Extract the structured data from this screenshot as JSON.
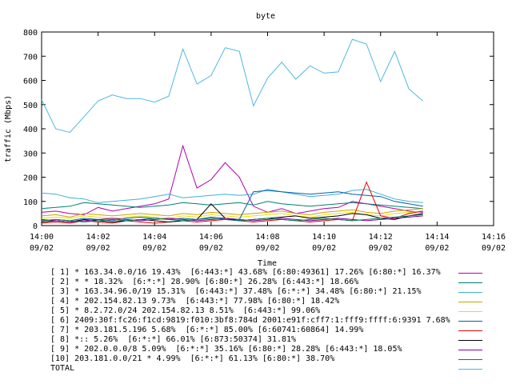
{
  "chart_data": {
    "type": "line",
    "title": "byte",
    "xlabel": "Time",
    "ylabel": "traffic (Mbps)",
    "ylim": [
      0,
      800
    ],
    "yticks": [
      "0",
      "100",
      "200",
      "300",
      "400",
      "500",
      "600",
      "700",
      "800"
    ],
    "xlim": [
      0,
      135
    ],
    "xticks": [
      {
        "t": 0,
        "time": "14:00",
        "date": "09/02"
      },
      {
        "t": 20,
        "time": "14:02",
        "date": "09/02"
      },
      {
        "t": 40,
        "time": "14:04",
        "date": "09/02"
      },
      {
        "t": 60,
        "time": "14:06",
        "date": "09/02"
      },
      {
        "t": 80,
        "time": "14:08",
        "date": "09/02"
      },
      {
        "t": 100,
        "time": "14:10",
        "date": "09/02"
      },
      {
        "t": 120,
        "time": "14:12",
        "date": "09/02"
      },
      {
        "t": 140,
        "time": "14:14",
        "date": "09/02"
      },
      {
        "t": 160,
        "time": "14:16",
        "date": "09/02"
      }
    ],
    "x": [
      0,
      5,
      10,
      15,
      20,
      25,
      30,
      35,
      40,
      45,
      50,
      55,
      60,
      65,
      70,
      75,
      80,
      85,
      90,
      95,
      100,
      105,
      110,
      115,
      120,
      125,
      130,
      135
    ],
    "series": [
      {
        "name": "[ 1] * 163.34.0.0/16 19.43%  [6:443:*] 43.68% [6:80:49361] 17.26% [6:80:*] 16.37%",
        "color": "#b000b0",
        "values": [
          55,
          60,
          50,
          45,
          75,
          60,
          70,
          80,
          90,
          110,
          330,
          155,
          190,
          260,
          200,
          80,
          55,
          70,
          50,
          60,
          70,
          75,
          100,
          90,
          80,
          70,
          60,
          55
        ]
      },
      {
        "name": "[ 2] * * 18.32%  [6:*:*] 28.90% [6:80:*] 26.28% [6:443:*] 18.66%",
        "color": "#008070",
        "values": [
          70,
          75,
          80,
          95,
          90,
          85,
          80,
          75,
          80,
          85,
          95,
          90,
          85,
          90,
          95,
          85,
          100,
          90,
          85,
          80,
          85,
          90,
          95,
          90,
          85,
          80,
          75,
          70
        ]
      },
      {
        "name": "[ 3] * 163.34.96.0/19 15.31%  [6:443:*] 37.48% [6:*:*] 34.48% [6:80:*] 21.15%",
        "color": "#40b0d0",
        "values": [
          135,
          130,
          115,
          110,
          95,
          100,
          105,
          110,
          120,
          130,
          115,
          120,
          125,
          130,
          125,
          130,
          150,
          140,
          130,
          120,
          125,
          130,
          145,
          150,
          130,
          110,
          100,
          95
        ]
      },
      {
        "name": "[ 4] * 202.154.82.13 9.73%  [6:443:*] 77.98% [6:80:*] 18.42%",
        "color": "#d0a000",
        "values": [
          40,
          45,
          35,
          50,
          45,
          40,
          45,
          50,
          45,
          40,
          50,
          45,
          55,
          50,
          45,
          50,
          55,
          60,
          50,
          45,
          55,
          60,
          65,
          55,
          50,
          60,
          65,
          70
        ]
      },
      {
        "name": "[ 5] * 8.2.72.0/24 202.154.82.13 8.51%  [6:443:*] 99.06%",
        "color": "#e8e000",
        "values": [
          30,
          35,
          30,
          40,
          35,
          30,
          35,
          40,
          35,
          30,
          40,
          35,
          45,
          40,
          35,
          40,
          45,
          50,
          40,
          35,
          45,
          50,
          55,
          45,
          40,
          50,
          55,
          60
        ]
      },
      {
        "name": "[ 6] 2409:30f:fc26:f1cd:9819:f010:3bf8:784d 2001:e91f:cff7:1:fff9:ffff:6:9391 7.68%",
        "color": "#0060b0",
        "values": [
          20,
          25,
          20,
          30,
          25,
          20,
          30,
          35,
          30,
          25,
          30,
          25,
          35,
          30,
          25,
          140,
          145,
          140,
          135,
          130,
          135,
          140,
          130,
          125,
          120,
          100,
          90,
          80
        ]
      },
      {
        "name": "[ 7] * 203.181.5.196 5.68%  [6:*:*] 85.00% [6:60741:60864] 14.99%",
        "color": "#e00000",
        "values": [
          10,
          15,
          10,
          20,
          15,
          10,
          20,
          15,
          10,
          15,
          20,
          15,
          20,
          25,
          20,
          15,
          20,
          25,
          20,
          15,
          20,
          25,
          20,
          180,
          40,
          30,
          50,
          60
        ]
      },
      {
        "name": "[ 8] *:: 5.26%  [6:*:*] 66.01% [6:873:50374] 31.81%",
        "color": "#000000",
        "values": [
          15,
          20,
          15,
          25,
          20,
          15,
          20,
          25,
          20,
          15,
          20,
          25,
          90,
          30,
          20,
          25,
          30,
          35,
          40,
          30,
          35,
          40,
          50,
          45,
          30,
          25,
          40,
          50
        ]
      },
      {
        "name": "[ 9] * 202.0.0.0/8 5.09%  [6:*:*] 35.16% [6:80:*] 28.28% [6:443:*] 18.05%",
        "color": "#8000a0",
        "values": [
          25,
          20,
          15,
          20,
          25,
          30,
          25,
          20,
          25,
          30,
          25,
          20,
          25,
          30,
          25,
          20,
          25,
          30,
          25,
          20,
          25,
          30,
          25,
          20,
          25,
          30,
          35,
          40
        ]
      },
      {
        "name": "[10] 203.181.0.0/21 * 4.99%  [6:*:*] 61.13% [6:80:*] 38.70%",
        "color": "#008060",
        "values": [
          20,
          25,
          20,
          15,
          20,
          25,
          20,
          25,
          30,
          25,
          20,
          25,
          30,
          25,
          20,
          25,
          30,
          25,
          20,
          25,
          30,
          25,
          20,
          25,
          30,
          35,
          40,
          45
        ]
      },
      {
        "name": "TOTAL",
        "color": "#50b8e0",
        "values": [
          520,
          400,
          385,
          450,
          515,
          540,
          525,
          525,
          510,
          535,
          730,
          585,
          620,
          735,
          720,
          495,
          610,
          675,
          605,
          660,
          630,
          635,
          770,
          750,
          595,
          720,
          565,
          515
        ]
      }
    ]
  }
}
